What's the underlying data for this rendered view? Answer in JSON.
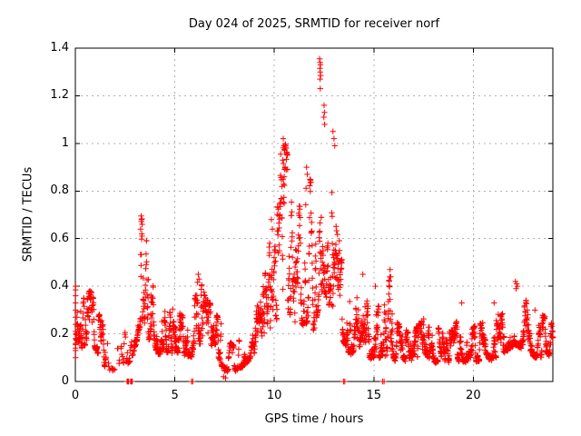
{
  "chart_data": {
    "type": "scatter",
    "title": "Day 024 of 2025, SRMTID for receiver norf",
    "xlabel": "GPS time / hours",
    "ylabel": "SRMTID / TECUs",
    "series_name": "SRMTID",
    "xlim": [
      0,
      24
    ],
    "ylim": [
      0,
      1.4
    ],
    "x_tick_values": [
      0,
      5,
      10,
      15,
      20
    ],
    "x_tick_labels": [
      "0",
      "5",
      "10",
      "15",
      "20"
    ],
    "y_tick_values": [
      0,
      0.2,
      0.4,
      0.6,
      0.8,
      1,
      1.2,
      1.4
    ],
    "y_tick_labels": [
      "0",
      "0.2",
      "0.4",
      "0.6",
      "0.8",
      "1",
      "1.2",
      "1.4"
    ],
    "grid": true,
    "legend_position": "none",
    "marker": {
      "glyph": "plus",
      "color": "#ff0000",
      "size": 7
    },
    "frame_color": "#000000",
    "grid_color": "#b0b0b0",
    "background": "#ffffff",
    "seed": 20250124,
    "samples": 2520,
    "envelope": [
      [
        0.0,
        0.08,
        0.4
      ],
      [
        0.25,
        0.14,
        0.33
      ],
      [
        0.5,
        0.16,
        0.36
      ],
      [
        0.75,
        0.17,
        0.38
      ],
      [
        1.0,
        0.14,
        0.33
      ],
      [
        1.25,
        0.1,
        0.27
      ],
      [
        1.5,
        0.06,
        0.2
      ],
      [
        1.8,
        0.05,
        0.16
      ],
      [
        2.1,
        0.05,
        0.15
      ],
      [
        2.4,
        0.07,
        0.18
      ],
      [
        2.7,
        0.08,
        0.25
      ],
      [
        2.95,
        0.12,
        0.4
      ],
      [
        3.15,
        0.2,
        0.58
      ],
      [
        3.3,
        0.25,
        0.7
      ],
      [
        3.5,
        0.24,
        0.65
      ],
      [
        3.7,
        0.18,
        0.5
      ],
      [
        3.9,
        0.14,
        0.4
      ],
      [
        4.1,
        0.12,
        0.3
      ],
      [
        4.4,
        0.11,
        0.26
      ],
      [
        4.7,
        0.13,
        0.36
      ],
      [
        5.0,
        0.12,
        0.3
      ],
      [
        5.3,
        0.12,
        0.28
      ],
      [
        5.6,
        0.11,
        0.26
      ],
      [
        5.9,
        0.11,
        0.28
      ],
      [
        6.2,
        0.14,
        0.44
      ],
      [
        6.5,
        0.14,
        0.36
      ],
      [
        6.8,
        0.12,
        0.32
      ],
      [
        7.1,
        0.09,
        0.28
      ],
      [
        7.5,
        0.05,
        0.2
      ],
      [
        7.9,
        0.04,
        0.15
      ],
      [
        8.3,
        0.06,
        0.18
      ],
      [
        8.7,
        0.09,
        0.24
      ],
      [
        9.1,
        0.12,
        0.3
      ],
      [
        9.5,
        0.15,
        0.42
      ],
      [
        9.8,
        0.18,
        0.6
      ],
      [
        10.1,
        0.25,
        0.8
      ],
      [
        10.35,
        0.3,
        0.97
      ],
      [
        10.55,
        0.33,
        1.0
      ],
      [
        10.8,
        0.28,
        0.88
      ],
      [
        11.1,
        0.24,
        0.75
      ],
      [
        11.4,
        0.24,
        0.72
      ],
      [
        11.7,
        0.25,
        0.88
      ],
      [
        12.0,
        0.22,
        0.78
      ],
      [
        12.2,
        0.3,
        1.0
      ],
      [
        12.35,
        0.38,
        1.3
      ],
      [
        12.55,
        0.38,
        1.15
      ],
      [
        12.75,
        0.32,
        0.98
      ],
      [
        12.95,
        0.3,
        1.02
      ],
      [
        13.15,
        0.24,
        0.88
      ],
      [
        13.35,
        0.2,
        0.72
      ],
      [
        13.55,
        0.15,
        0.52
      ],
      [
        13.8,
        0.12,
        0.38
      ],
      [
        14.1,
        0.12,
        0.33
      ],
      [
        14.45,
        0.12,
        0.43
      ],
      [
        14.8,
        0.1,
        0.28
      ],
      [
        15.1,
        0.11,
        0.38
      ],
      [
        15.45,
        0.1,
        0.28
      ],
      [
        15.8,
        0.11,
        0.44
      ],
      [
        16.1,
        0.09,
        0.26
      ],
      [
        16.5,
        0.08,
        0.21
      ],
      [
        17.0,
        0.08,
        0.21
      ],
      [
        17.5,
        0.09,
        0.26
      ],
      [
        18.0,
        0.08,
        0.21
      ],
      [
        18.5,
        0.09,
        0.24
      ],
      [
        19.0,
        0.08,
        0.21
      ],
      [
        19.4,
        0.09,
        0.3
      ],
      [
        19.8,
        0.08,
        0.21
      ],
      [
        20.2,
        0.09,
        0.24
      ],
      [
        20.6,
        0.08,
        0.24
      ],
      [
        21.0,
        0.1,
        0.3
      ],
      [
        21.4,
        0.11,
        0.28
      ],
      [
        21.8,
        0.14,
        0.4
      ],
      [
        22.1,
        0.16,
        0.42
      ],
      [
        22.45,
        0.14,
        0.37
      ],
      [
        22.8,
        0.12,
        0.33
      ],
      [
        23.2,
        0.1,
        0.29
      ],
      [
        23.6,
        0.11,
        0.27
      ],
      [
        23.95,
        0.11,
        0.24
      ]
    ],
    "sparse_ranges": [
      [
        1.55,
        2.6,
        0.3
      ],
      [
        2.6,
        3.0,
        0.55
      ],
      [
        7.35,
        8.4,
        0.7
      ]
    ],
    "spike_points": [
      [
        3.28,
        0.64
      ],
      [
        3.31,
        0.695
      ],
      [
        3.33,
        0.68
      ],
      [
        3.36,
        0.66
      ],
      [
        3.34,
        0.62
      ],
      [
        6.18,
        0.45
      ],
      [
        6.22,
        0.43
      ],
      [
        7.45,
        0.02
      ],
      [
        7.55,
        0.015
      ],
      [
        9.85,
        0.68
      ],
      [
        9.9,
        0.64
      ],
      [
        10.45,
        1.02
      ],
      [
        10.48,
        0.99
      ],
      [
        10.52,
        0.97
      ],
      [
        10.42,
        0.93
      ],
      [
        10.55,
        0.9
      ],
      [
        10.5,
        0.86
      ],
      [
        11.62,
        0.9
      ],
      [
        11.66,
        0.87
      ],
      [
        12.28,
        1.355
      ],
      [
        12.3,
        1.34
      ],
      [
        12.32,
        1.33
      ],
      [
        12.29,
        1.315
      ],
      [
        12.31,
        1.3
      ],
      [
        12.33,
        1.285
      ],
      [
        12.3,
        1.27
      ],
      [
        12.31,
        1.23
      ],
      [
        12.5,
        1.16
      ],
      [
        12.52,
        1.13
      ],
      [
        12.49,
        1.11
      ],
      [
        12.53,
        1.08
      ],
      [
        12.95,
        1.05
      ],
      [
        13.0,
        1.02
      ],
      [
        13.04,
        0.99
      ],
      [
        14.45,
        0.45
      ],
      [
        15.08,
        0.4
      ],
      [
        15.82,
        0.47
      ],
      [
        15.85,
        0.44
      ],
      [
        19.42,
        0.33
      ],
      [
        21.05,
        0.33
      ],
      [
        22.12,
        0.42
      ],
      [
        22.18,
        0.41
      ],
      [
        22.22,
        0.4
      ],
      [
        22.15,
        0.39
      ],
      [
        23.1,
        0.3
      ]
    ],
    "zero_marks": [
      2.6,
      2.64,
      2.68,
      2.78,
      2.82,
      2.86,
      5.84,
      5.9,
      13.48,
      13.54,
      15.44,
      15.52
    ],
    "left_edge_column": {
      "x": 0.015,
      "values": [
        0.1,
        0.13,
        0.16,
        0.18,
        0.21,
        0.24,
        0.27,
        0.3,
        0.33,
        0.36,
        0.385,
        0.4
      ]
    },
    "walk": {
      "step": 0.4,
      "jump_prob": 0.055,
      "shape_normal": 2.0,
      "shape_peak": 1.3,
      "peak_span_threshold": 0.45,
      "jitter": 0.014
    }
  }
}
